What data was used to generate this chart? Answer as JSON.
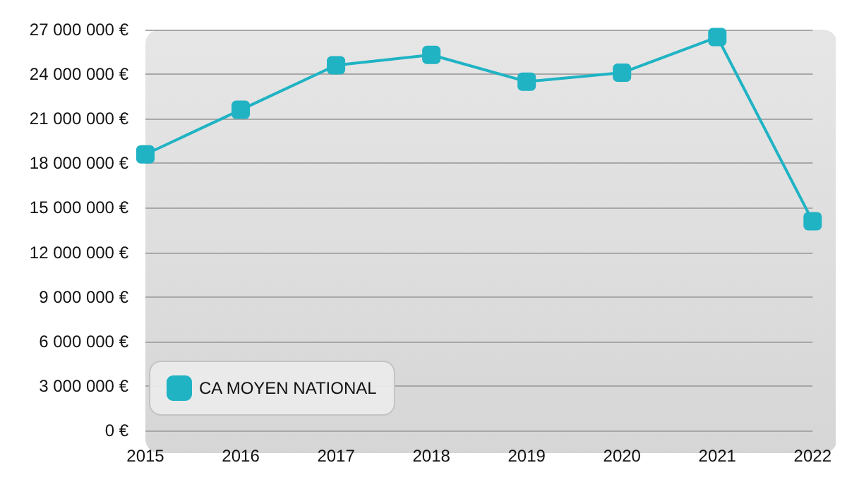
{
  "chart_data": {
    "type": "line",
    "categories": [
      "2015",
      "2016",
      "2017",
      "2018",
      "2019",
      "2020",
      "2021",
      "2022"
    ],
    "series": [
      {
        "name": "CA MOYEN NATIONAL",
        "color": "#1fb3c4",
        "values": [
          18600000,
          21600000,
          24600000,
          25300000,
          23500000,
          24100000,
          26500000,
          14100000
        ]
      }
    ],
    "ylim": [
      0,
      27000000
    ],
    "yticks": [
      {
        "value": 0,
        "label": "0 €"
      },
      {
        "value": 3000000,
        "label": "3 000 000 €"
      },
      {
        "value": 6000000,
        "label": "6 000 000 €"
      },
      {
        "value": 9000000,
        "label": "9 000 000 €"
      },
      {
        "value": 12000000,
        "label": "12 000 000 €"
      },
      {
        "value": 15000000,
        "label": "15 000 000 €"
      },
      {
        "value": 18000000,
        "label": "18 000 000 €"
      },
      {
        "value": 21000000,
        "label": "21 000 000 €"
      },
      {
        "value": 24000000,
        "label": "24 000 000 €"
      },
      {
        "value": 27000000,
        "label": "27 000 000 €"
      }
    ],
    "grid": "y",
    "legend": "bottom left",
    "marker": "square",
    "line_style": "solid"
  }
}
